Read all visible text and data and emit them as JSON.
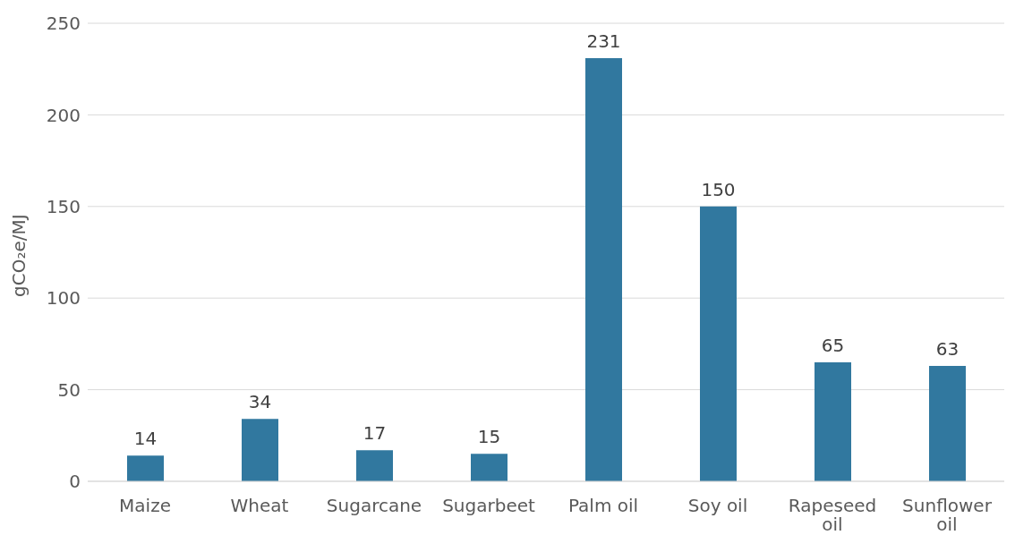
{
  "chart_data": {
    "type": "bar",
    "ylabel": "gCO₂e/MJ",
    "categories": [
      "Maize",
      "Wheat",
      "Sugarcane",
      "Sugarbeet",
      "Palm oil",
      "Soy oil",
      "Rapeseed oil",
      "Sunflower oil"
    ],
    "values": [
      14,
      34,
      17,
      15,
      231,
      150,
      65,
      63
    ],
    "color": "#31789f",
    "ylim": [
      0,
      250
    ],
    "yticks": [
      0,
      50,
      100,
      150,
      200,
      250
    ],
    "grid": "y",
    "data_labels": true
  }
}
